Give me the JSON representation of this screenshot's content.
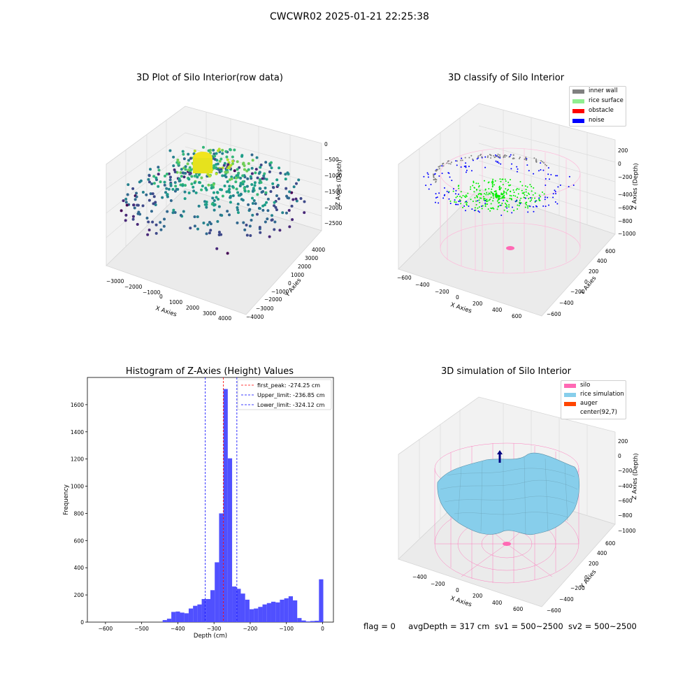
{
  "suptitle": "CWCWR02 2025-01-21 22:25:38",
  "footer": {
    "flag": "flag = 0",
    "avg_depth": "avgDepth = 317 cm",
    "sv1": "sv1 = 500~2500",
    "sv2": "sv2 = 500~2500"
  },
  "colors": {
    "inner_wall": "#808080",
    "rice_surface": "#90ee90",
    "obstacle": "#ff0000",
    "noise": "#0000ff",
    "silo": "#ff69b4",
    "rice_simulation": "#87ceeb",
    "auger": "#ff4500",
    "hist_bar": "#5050ff"
  },
  "chart_data": [
    {
      "type": "scatter",
      "projection": "3d",
      "title": "3D Plot of Silo Interior(row data)",
      "xlabel": "X Axies",
      "ylabel": "Y Axies",
      "zlabel": "Z Axies (Depth)",
      "xticks": [
        "−3000",
        "−2000",
        "−1000",
        "0",
        "1000",
        "2000",
        "3000",
        "4000"
      ],
      "yticks": [
        "−4000",
        "−3000",
        "−2000",
        "−1000",
        "0",
        "1000",
        "2000",
        "3000",
        "4000"
      ],
      "zticks": [
        "−2500",
        "−2000",
        "−1500",
        "−1000",
        "−500",
        "0"
      ],
      "colormap": "viridis"
    },
    {
      "type": "scatter",
      "projection": "3d",
      "title": "3D classify of Silo Interior",
      "xlabel": "X Axies",
      "ylabel": "Y Axies",
      "zlabel": "Z Axies (Depth)",
      "xticks": [
        "−600",
        "−400",
        "−200",
        "0",
        "200",
        "400",
        "600"
      ],
      "yticks": [
        "−600",
        "−400",
        "−200",
        "0",
        "200",
        "400",
        "600"
      ],
      "zticks": [
        "−1000",
        "−800",
        "−600",
        "−400",
        "−200",
        "0",
        "200"
      ],
      "legend": [
        "inner wall",
        "rice surface",
        "obstacle",
        "noise"
      ],
      "legend_position": "top-right"
    },
    {
      "type": "bar",
      "title": "Histogram of Z-Axies (Height) Values",
      "xlabel": "Depth (cm)",
      "ylabel": "Frequency",
      "xlim": [
        -650,
        30
      ],
      "ylim": [
        0,
        1800
      ],
      "xticks": [
        -600,
        -500,
        -400,
        -300,
        -200,
        -100,
        0
      ],
      "xtick_labels": [
        "−600",
        "−500",
        "−400",
        "−300",
        "−200",
        "−100",
        "0"
      ],
      "yticks": [
        0,
        200,
        400,
        600,
        800,
        1000,
        1200,
        1400,
        1600
      ],
      "bin_width": 12,
      "bins": [
        [
          -442,
          15
        ],
        [
          -430,
          25
        ],
        [
          -418,
          75
        ],
        [
          -406,
          78
        ],
        [
          -394,
          70
        ],
        [
          -382,
          65
        ],
        [
          -370,
          100
        ],
        [
          -358,
          120
        ],
        [
          -346,
          130
        ],
        [
          -334,
          170
        ],
        [
          -322,
          170
        ],
        [
          -310,
          235
        ],
        [
          -298,
          440
        ],
        [
          -286,
          800
        ],
        [
          -274,
          1715
        ],
        [
          -262,
          1205
        ],
        [
          -250,
          262
        ],
        [
          -238,
          245
        ],
        [
          -226,
          210
        ],
        [
          -214,
          165
        ],
        [
          -202,
          95
        ],
        [
          -190,
          100
        ],
        [
          -178,
          112
        ],
        [
          -166,
          130
        ],
        [
          -154,
          140
        ],
        [
          -142,
          150
        ],
        [
          -130,
          145
        ],
        [
          -118,
          165
        ],
        [
          -106,
          175
        ],
        [
          -94,
          190
        ],
        [
          -82,
          160
        ],
        [
          -70,
          30
        ],
        [
          -58,
          12
        ],
        [
          -46,
          5
        ],
        [
          -34,
          8
        ],
        [
          -22,
          10
        ],
        [
          -10,
          315
        ]
      ],
      "vlines": [
        {
          "x": -274.25,
          "label": "first_peak: -274.25 cm",
          "color": "#ff0000"
        },
        {
          "x": -236.85,
          "label": "Upper_limit: -236.85 cm",
          "color": "#0000ff"
        },
        {
          "x": -324.12,
          "label": "Lower_limit: -324.12 cm",
          "color": "#0000ff"
        }
      ],
      "legend_position": "top-right"
    },
    {
      "type": "area",
      "projection": "3d",
      "title": "3D simulation of Silo Interior",
      "xlabel": "X Axies",
      "ylabel": "Y Axies",
      "zlabel": "Z Axies (Depth)",
      "xticks": [
        "−400",
        "−200",
        "0",
        "200",
        "400",
        "600"
      ],
      "yticks": [
        "−600",
        "−400",
        "−200",
        "0",
        "200",
        "400",
        "600"
      ],
      "zticks": [
        "−1000",
        "−800",
        "−600",
        "−400",
        "−200",
        "0",
        "200"
      ],
      "legend": [
        "silo",
        "rice simulation",
        "auger",
        "center(92,7)"
      ],
      "legend_position": "top-right"
    }
  ]
}
